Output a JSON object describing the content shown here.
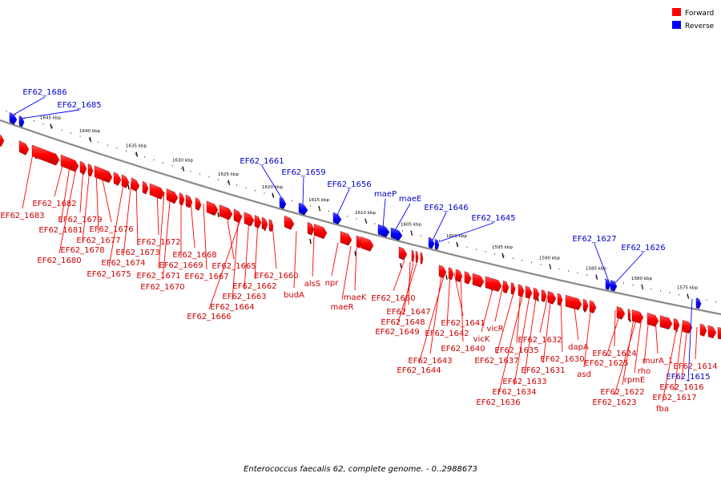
{
  "legend": {
    "forward": {
      "label": "Forward",
      "color": "#ff0000"
    },
    "reverse": {
      "label": "Reverse",
      "color": "#0000ff"
    }
  },
  "title": "Enterococcus faecalis 62, complete genome. - 0..2988673",
  "colors": {
    "forward": "#ff0000",
    "forward_label": "#cc0000",
    "reverse": "#0000ff",
    "reverse_label": "#0000cc",
    "backbone": "#888888"
  },
  "ticks": [
    "1645 kbp",
    "1640 kbp",
    "1635 kbp",
    "1630 kbp",
    "1625 kbp",
    "1620 kbp",
    "1615 kbp",
    "1610 kbp",
    "1605 kbp",
    "1600 kbp",
    "1595 kbp",
    "1590 kbp",
    "1585 kbp",
    "1580 kbp",
    "1575 kbp"
  ],
  "reverse_genes": [
    "EF62_1686",
    "EF62_1685",
    "EF62_1661",
    "EF62_1659",
    "EF62_1656",
    "maeP",
    "maeE",
    "EF62_1646",
    "EF62_1645",
    "EF62_1627",
    "EF62_1626",
    "EF62_1615"
  ],
  "forward_genes": [
    "EF62_1683",
    "EF62_1682",
    "EF62_1681",
    "EF62_1679",
    "EF62_1680",
    "EF62_1678",
    "EF62_1677",
    "EF62_1676",
    "EF62_1675",
    "EF62_1674",
    "EF62_1673",
    "EF62_1672",
    "EF62_1671",
    "EF62_1670",
    "EF62_1669",
    "EF62_1668",
    "EF62_1667",
    "EF62_1666",
    "EF62_1665",
    "EF62_1664",
    "EF62_1663",
    "EF62_1662",
    "EF62_1660",
    "budA",
    "alsS",
    "npr",
    "maeK",
    "maeR",
    "EF62_1650",
    "EF62_1647",
    "EF62_1648",
    "EF62_1649",
    "EF62_1641",
    "EF62_1642",
    "EF62_1643",
    "EF62_1644",
    "EF62_1640",
    "vicR",
    "vicK",
    "EF62_1637",
    "EF62_1635",
    "EF62_1636",
    "EF62_1634",
    "EF62_1633",
    "EF62_1632",
    "EF62_1631",
    "EF62_1630",
    "dapA",
    "asd",
    "EF62_1624",
    "EF62_1625",
    "EF62_1622",
    "EF62_1623",
    "rpmE",
    "rho",
    "murA_1",
    "EF62_1614",
    "EF62_1616",
    "EF62_1617",
    "fba"
  ]
}
